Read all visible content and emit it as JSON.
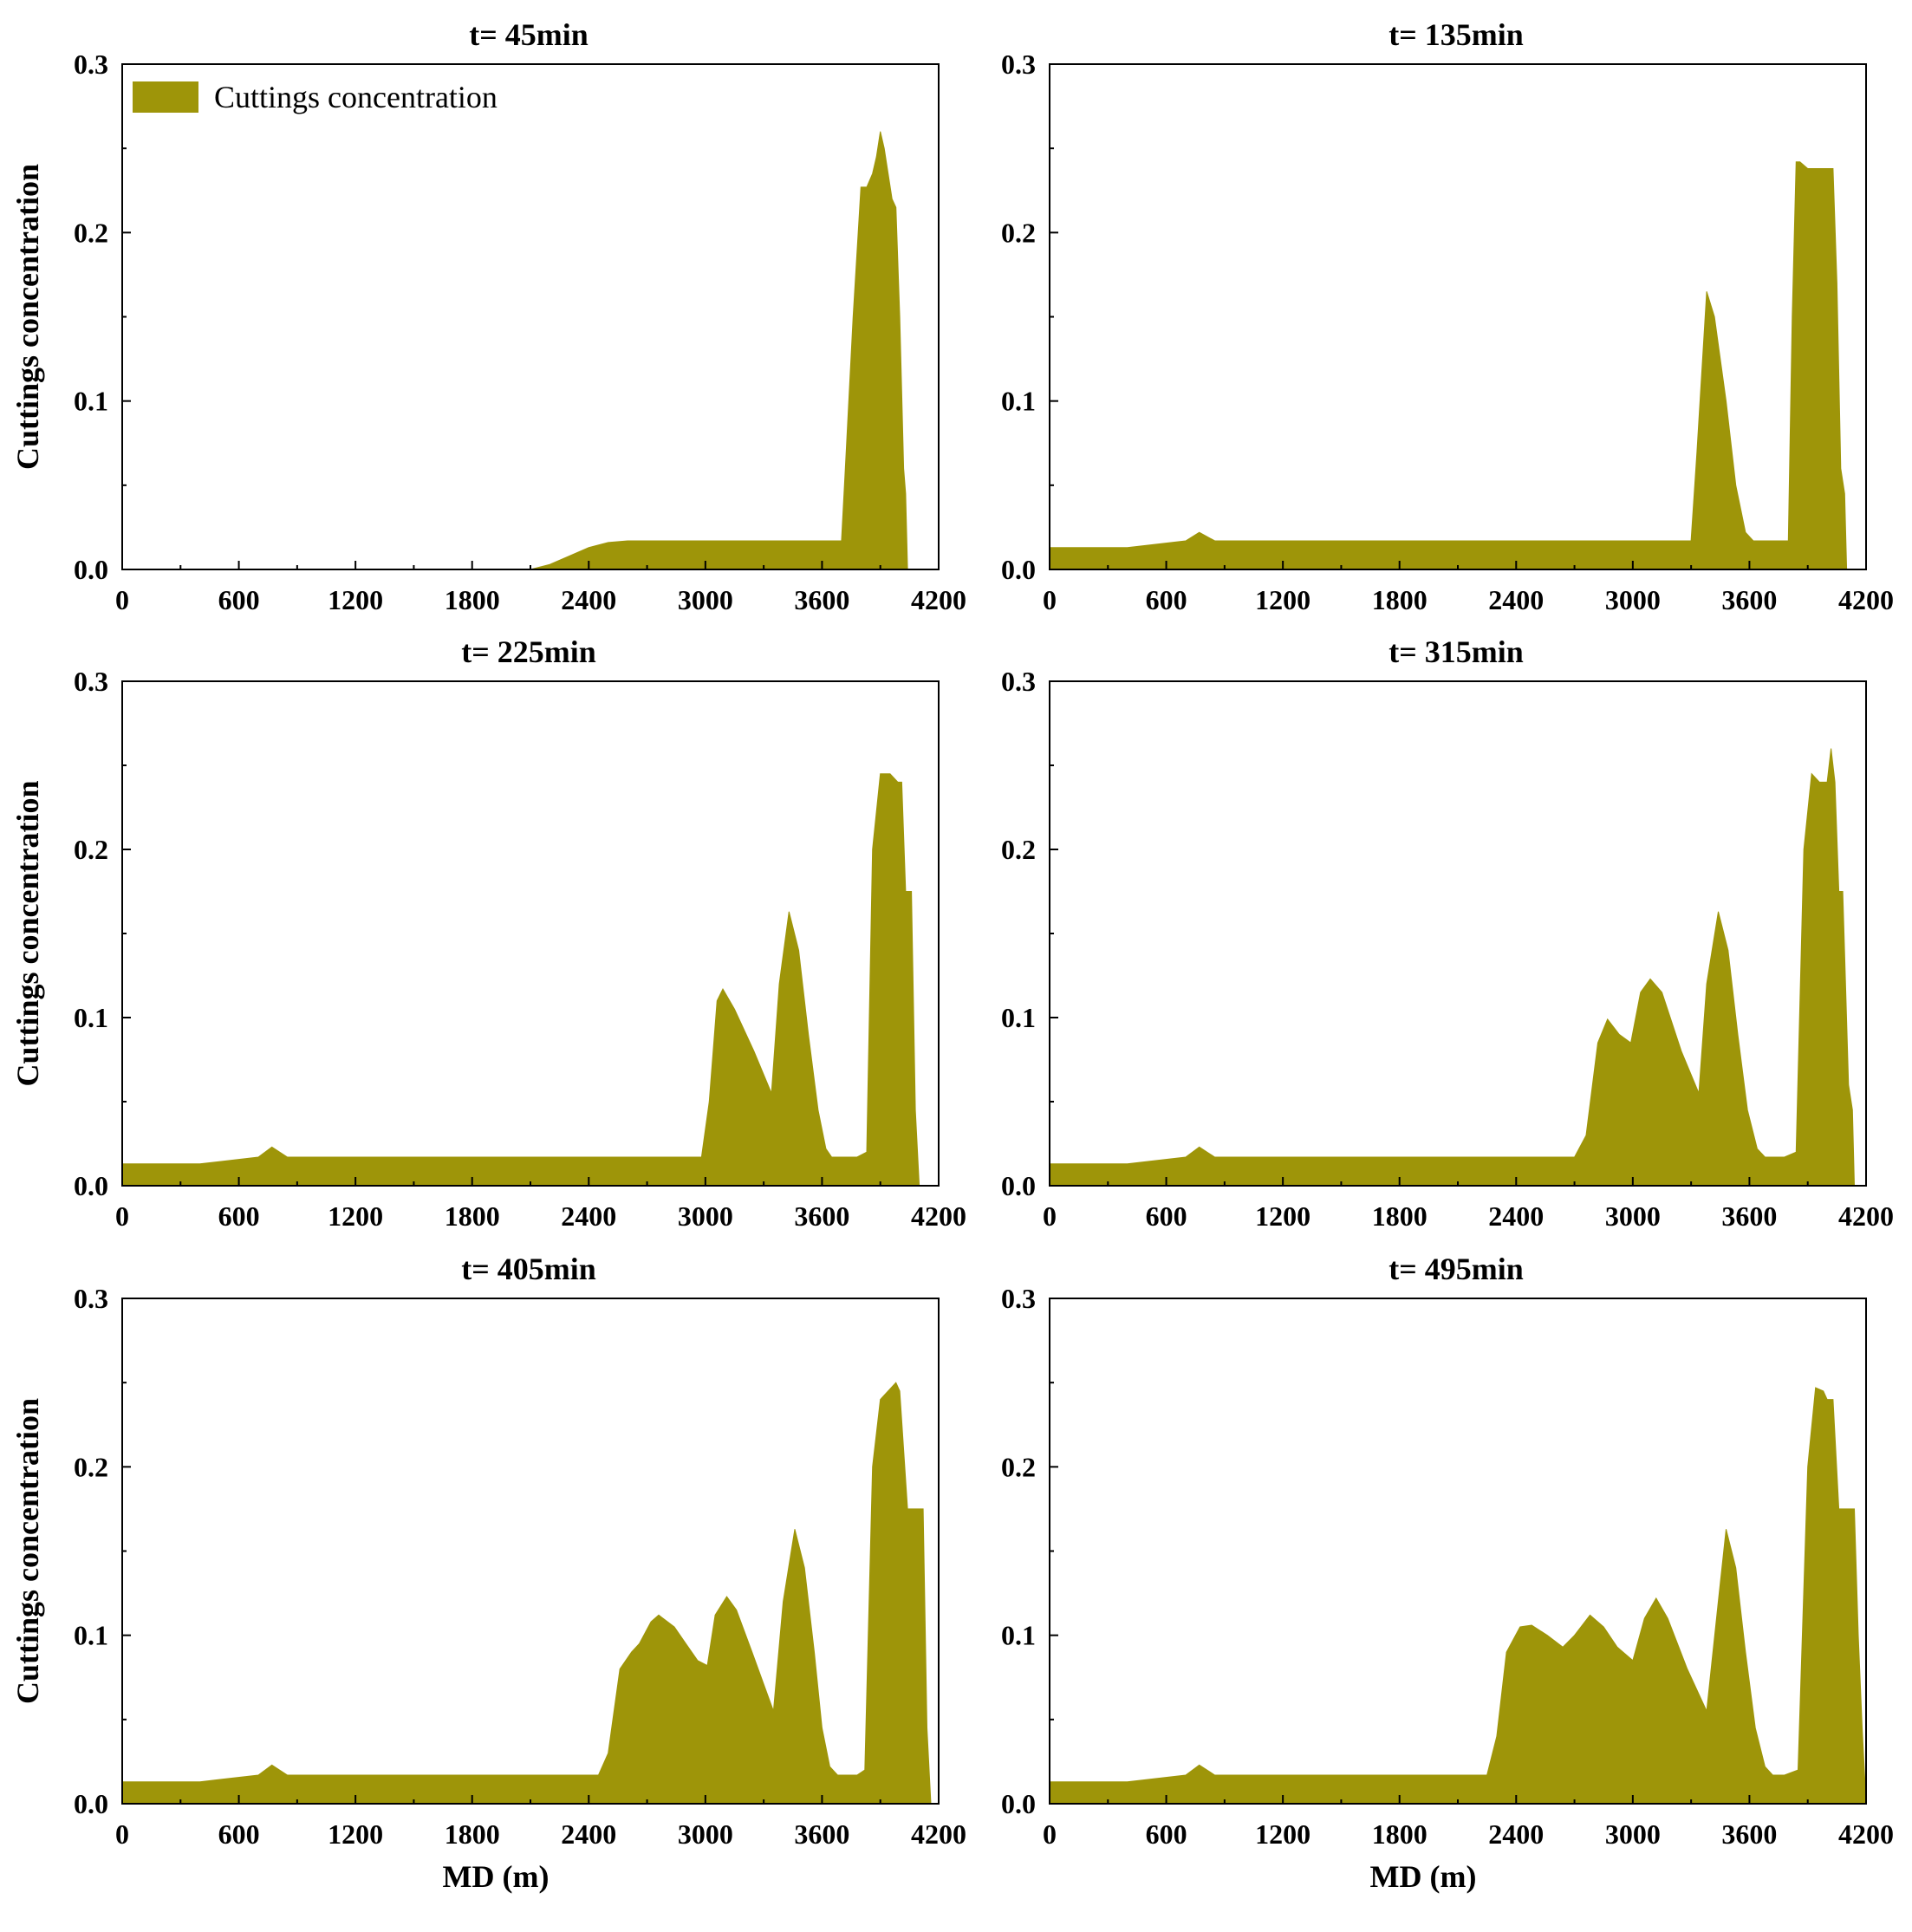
{
  "figure": {
    "fill_color": "#9e9509",
    "legend_label": "Cuttings concentration",
    "legend_placement": "top-left (first panel)"
  },
  "chart_data": [
    {
      "type": "area",
      "panel": "top-left",
      "title": "t= 45min",
      "xlabel": "",
      "ylabel": "Cuttings concentration",
      "xlim": [
        0,
        4200
      ],
      "ylim": [
        0,
        0.3
      ],
      "xticks": [
        0,
        600,
        1200,
        1800,
        2400,
        3000,
        3600,
        4200
      ],
      "yticks": [
        0.0,
        0.1,
        0.2,
        0.3
      ],
      "xtick_labels": [
        "0",
        "600",
        "1200",
        "1800",
        "2400",
        "3000",
        "3600",
        "4200"
      ],
      "ytick_labels": [
        "0.0",
        "0.1",
        "0.2",
        "0.3"
      ],
      "legend": [
        "Cuttings concentration"
      ],
      "series": [
        {
          "name": "Cuttings concentration",
          "x": [
            0,
            2100,
            2200,
            2300,
            2400,
            2500,
            2600,
            3000,
            3400,
            3700,
            3720,
            3760,
            3800,
            3830,
            3860,
            3880,
            3900,
            3920,
            3940,
            3960,
            3980,
            4000,
            4020,
            4030,
            4040
          ],
          "y": [
            0,
            0,
            0.003,
            0.008,
            0.013,
            0.016,
            0.017,
            0.017,
            0.017,
            0.017,
            0.06,
            0.15,
            0.227,
            0.227,
            0.235,
            0.245,
            0.26,
            0.25,
            0.235,
            0.22,
            0.215,
            0.15,
            0.06,
            0.045,
            0
          ]
        }
      ]
    },
    {
      "type": "area",
      "panel": "top-right",
      "title": "t= 135min",
      "xlabel": "",
      "ylabel": "",
      "xlim": [
        0,
        4200
      ],
      "ylim": [
        0,
        0.3
      ],
      "xticks": [
        0,
        600,
        1200,
        1800,
        2400,
        3000,
        3600,
        4200
      ],
      "yticks": [
        0.0,
        0.1,
        0.2,
        0.3
      ],
      "xtick_labels": [
        "0",
        "600",
        "1200",
        "1800",
        "2400",
        "3000",
        "3600",
        "4200"
      ],
      "ytick_labels": [
        "0.0",
        "0.1",
        "0.2",
        "0.3"
      ],
      "series": [
        {
          "name": "Cuttings concentration",
          "x": [
            0,
            400,
            700,
            770,
            850,
            1000,
            3000,
            3300,
            3330,
            3380,
            3420,
            3480,
            3530,
            3580,
            3620,
            3650,
            3700,
            3760,
            3800,
            3820,
            3840,
            3860,
            3900,
            3950,
            4000,
            4030,
            4050,
            4070,
            4090,
            4100
          ],
          "y": [
            0.013,
            0.013,
            0.017,
            0.022,
            0.017,
            0.017,
            0.017,
            0.017,
            0.07,
            0.165,
            0.15,
            0.1,
            0.05,
            0.022,
            0.017,
            0.017,
            0.017,
            0.017,
            0.017,
            0.15,
            0.242,
            0.242,
            0.238,
            0.238,
            0.238,
            0.238,
            0.17,
            0.06,
            0.045,
            0
          ]
        }
      ]
    },
    {
      "type": "area",
      "panel": "middle-left",
      "title": "t= 225min",
      "xlabel": "",
      "ylabel": "Cuttings concentration",
      "xlim": [
        0,
        4200
      ],
      "ylim": [
        0,
        0.3
      ],
      "xticks": [
        0,
        600,
        1200,
        1800,
        2400,
        3000,
        3600,
        4200
      ],
      "yticks": [
        0.0,
        0.1,
        0.2,
        0.3
      ],
      "xtick_labels": [
        "0",
        "600",
        "1200",
        "1800",
        "2400",
        "3000",
        "3600",
        "4200"
      ],
      "ytick_labels": [
        "0.0",
        "0.1",
        "0.2",
        "0.3"
      ],
      "series": [
        {
          "name": "Cuttings concentration",
          "x": [
            0,
            400,
            700,
            770,
            850,
            1000,
            2980,
            3020,
            3060,
            3090,
            3150,
            3250,
            3340,
            3380,
            3430,
            3480,
            3530,
            3580,
            3620,
            3650,
            3700,
            3780,
            3830,
            3860,
            3900,
            3950,
            3990,
            4010,
            4030,
            4060,
            4080,
            4100
          ],
          "y": [
            0.013,
            0.013,
            0.017,
            0.023,
            0.017,
            0.017,
            0.017,
            0.05,
            0.11,
            0.117,
            0.105,
            0.08,
            0.055,
            0.12,
            0.163,
            0.14,
            0.09,
            0.045,
            0.022,
            0.017,
            0.017,
            0.017,
            0.02,
            0.2,
            0.245,
            0.245,
            0.24,
            0.24,
            0.175,
            0.175,
            0.045,
            0
          ]
        }
      ]
    },
    {
      "type": "area",
      "panel": "middle-right",
      "title": "t= 315min",
      "xlabel": "",
      "ylabel": "",
      "xlim": [
        0,
        4200
      ],
      "ylim": [
        0,
        0.3
      ],
      "xticks": [
        0,
        600,
        1200,
        1800,
        2400,
        3000,
        3600,
        4200
      ],
      "yticks": [
        0.0,
        0.1,
        0.2,
        0.3
      ],
      "xtick_labels": [
        "0",
        "600",
        "1200",
        "1800",
        "2400",
        "3000",
        "3600",
        "4200"
      ],
      "ytick_labels": [
        "0.0",
        "0.1",
        "0.2",
        "0.3"
      ],
      "series": [
        {
          "name": "Cuttings concentration",
          "x": [
            0,
            400,
            700,
            770,
            850,
            1000,
            2700,
            2760,
            2820,
            2870,
            2930,
            2990,
            3040,
            3090,
            3150,
            3250,
            3340,
            3380,
            3440,
            3490,
            3540,
            3590,
            3640,
            3680,
            3720,
            3780,
            3840,
            3880,
            3920,
            3960,
            4000,
            4020,
            4040,
            4060,
            4080,
            4110,
            4130,
            4140
          ],
          "y": [
            0.013,
            0.013,
            0.017,
            0.023,
            0.017,
            0.017,
            0.017,
            0.03,
            0.085,
            0.099,
            0.09,
            0.085,
            0.115,
            0.123,
            0.115,
            0.08,
            0.055,
            0.12,
            0.163,
            0.14,
            0.09,
            0.045,
            0.022,
            0.017,
            0.017,
            0.017,
            0.02,
            0.2,
            0.245,
            0.24,
            0.24,
            0.26,
            0.24,
            0.175,
            0.175,
            0.06,
            0.045,
            0
          ]
        }
      ]
    },
    {
      "type": "area",
      "panel": "bottom-left",
      "title": "t= 405min",
      "xlabel": "MD (m)",
      "ylabel": "Cuttings concentration",
      "xlim": [
        0,
        4200
      ],
      "ylim": [
        0,
        0.3
      ],
      "xticks": [
        0,
        600,
        1200,
        1800,
        2400,
        3000,
        3600,
        4200
      ],
      "yticks": [
        0.0,
        0.1,
        0.2,
        0.3
      ],
      "xtick_labels": [
        "0",
        "600",
        "1200",
        "1800",
        "2400",
        "3000",
        "3600",
        "4200"
      ],
      "ytick_labels": [
        "0.0",
        "0.1",
        "0.2",
        "0.3"
      ],
      "series": [
        {
          "name": "Cuttings concentration",
          "x": [
            0,
            400,
            700,
            770,
            850,
            1000,
            2450,
            2500,
            2560,
            2620,
            2660,
            2720,
            2760,
            2840,
            2900,
            2960,
            3010,
            3050,
            3110,
            3160,
            3240,
            3350,
            3400,
            3460,
            3510,
            3560,
            3600,
            3640,
            3680,
            3720,
            3780,
            3820,
            3860,
            3900,
            3940,
            3980,
            4000,
            4040,
            4080,
            4120,
            4140,
            4160
          ],
          "y": [
            0.013,
            0.013,
            0.017,
            0.023,
            0.017,
            0.017,
            0.017,
            0.03,
            0.08,
            0.09,
            0.095,
            0.108,
            0.112,
            0.105,
            0.095,
            0.085,
            0.082,
            0.112,
            0.123,
            0.115,
            0.09,
            0.055,
            0.12,
            0.163,
            0.14,
            0.09,
            0.045,
            0.022,
            0.017,
            0.017,
            0.017,
            0.02,
            0.2,
            0.24,
            0.245,
            0.25,
            0.245,
            0.175,
            0.175,
            0.175,
            0.045,
            0
          ]
        }
      ]
    },
    {
      "type": "area",
      "panel": "bottom-right",
      "title": "t= 495min",
      "xlabel": "MD (m)",
      "ylabel": "",
      "xlim": [
        0,
        4200
      ],
      "ylim": [
        0,
        0.3
      ],
      "xticks": [
        0,
        600,
        1200,
        1800,
        2400,
        3000,
        3600,
        4200
      ],
      "yticks": [
        0.0,
        0.1,
        0.2,
        0.3
      ],
      "xtick_labels": [
        "0",
        "600",
        "1200",
        "1800",
        "2400",
        "3000",
        "3600",
        "4200"
      ],
      "ytick_labels": [
        "0.0",
        "0.1",
        "0.2",
        "0.3"
      ],
      "series": [
        {
          "name": "Cuttings concentration",
          "x": [
            0,
            400,
            700,
            770,
            850,
            1000,
            2250,
            2300,
            2350,
            2420,
            2480,
            2560,
            2640,
            2700,
            2780,
            2850,
            2920,
            3000,
            3060,
            3120,
            3180,
            3280,
            3380,
            3440,
            3480,
            3530,
            3580,
            3630,
            3680,
            3720,
            3780,
            3850,
            3900,
            3940,
            3980,
            4000,
            4030,
            4060,
            4100,
            4140,
            4160,
            4180,
            4200
          ],
          "y": [
            0.013,
            0.013,
            0.017,
            0.023,
            0.017,
            0.017,
            0.017,
            0.04,
            0.09,
            0.105,
            0.106,
            0.1,
            0.093,
            0.1,
            0.112,
            0.105,
            0.093,
            0.085,
            0.11,
            0.122,
            0.11,
            0.08,
            0.055,
            0.12,
            0.163,
            0.14,
            0.09,
            0.045,
            0.022,
            0.017,
            0.017,
            0.02,
            0.2,
            0.247,
            0.245,
            0.24,
            0.24,
            0.175,
            0.175,
            0.175,
            0.1,
            0.045,
            0
          ]
        }
      ]
    }
  ]
}
